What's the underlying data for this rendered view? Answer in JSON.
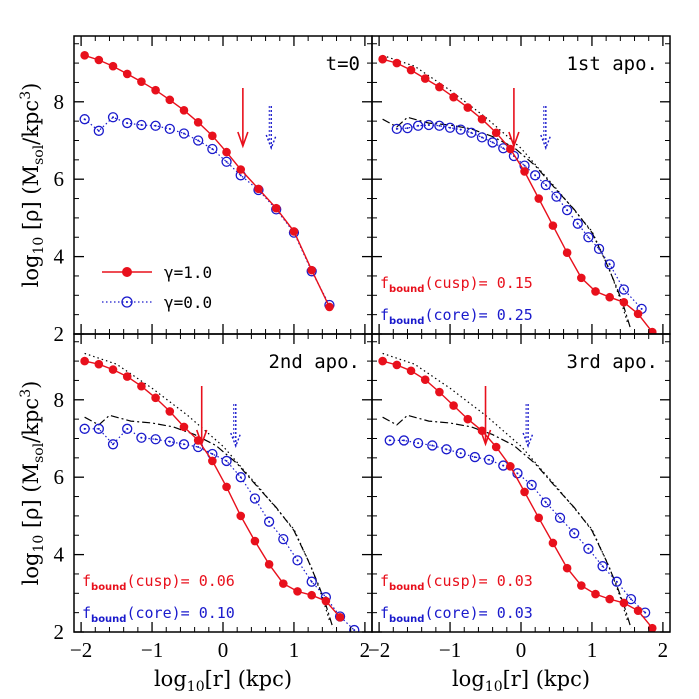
{
  "chart_data": {
    "type": "line",
    "layout": "2x2 panels sharing axes",
    "xlabel": "log10[r] (kpc)",
    "ylabel": "log10 [ρ] (Msol/kpc3)",
    "xlabel_parts": {
      "main": "log",
      "sub": "10",
      "rest": "[r]  (kpc)"
    },
    "ylabel_parts": {
      "main": "log",
      "sub": "10",
      "rest": " [ρ]  (M",
      "sub2": "sol",
      "rest2": "/kpc",
      "sup": "3",
      "end": ")"
    },
    "xlim": [
      -2.1,
      2.1
    ],
    "ylim": [
      2.0,
      9.7
    ],
    "x_ticks": [
      -2,
      -1,
      0,
      1,
      2
    ],
    "x_tick_labels": [
      "−2",
      "−1",
      "0",
      "1",
      "2"
    ],
    "y_ticks": [
      2,
      4,
      6,
      8
    ],
    "y_tick_labels": [
      "2",
      "4",
      "6",
      "8"
    ],
    "legend": {
      "location": "lower-left of t=0 panel",
      "entries": [
        {
          "name": "γ=1.0",
          "style": "solid red line with filled circles"
        },
        {
          "name": "γ=0.0",
          "style": "dotted blue line with open circles"
        }
      ]
    },
    "colors": {
      "cusp": "#e8101c",
      "core": "#1a1acc",
      "initial_cusp": "#000000",
      "initial_core": "#000000"
    },
    "panels": [
      {
        "title": "t=0",
        "cusp_arrow_x": 0.28,
        "core_arrow_x": 0.68,
        "series": [
          {
            "name": "γ=1.0",
            "x": [
              -1.95,
              -1.75,
              -1.55,
              -1.35,
              -1.15,
              -0.95,
              -0.75,
              -0.55,
              -0.35,
              -0.15,
              0.05,
              0.25,
              0.5,
              0.75,
              1.0,
              1.25,
              1.5
            ],
            "y": [
              9.2,
              9.08,
              8.92,
              8.72,
              8.52,
              8.3,
              8.05,
              7.78,
              7.47,
              7.12,
              6.7,
              6.25,
              5.75,
              5.25,
              4.65,
              3.65,
              2.7
            ]
          },
          {
            "name": "γ=0.0",
            "x": [
              -1.95,
              -1.75,
              -1.55,
              -1.35,
              -1.15,
              -0.95,
              -0.75,
              -0.55,
              -0.35,
              -0.15,
              0.05,
              0.25,
              0.5,
              0.75,
              1.0,
              1.25,
              1.5
            ],
            "y": [
              7.55,
              7.25,
              7.6,
              7.45,
              7.4,
              7.38,
              7.3,
              7.18,
              7.0,
              6.78,
              6.45,
              6.1,
              5.72,
              5.22,
              4.62,
              3.62,
              2.75
            ]
          }
        ],
        "initial_cusp": null,
        "initial_core": null
      },
      {
        "title": "1st apo.",
        "cusp_arrow_x": -0.1,
        "core_arrow_x": 0.35,
        "fbound_cusp": "0.15",
        "fbound_core": "0.25",
        "series": [
          {
            "name": "γ=1.0",
            "x": [
              -1.95,
              -1.75,
              -1.55,
              -1.35,
              -1.15,
              -0.95,
              -0.75,
              -0.55,
              -0.35,
              -0.15,
              0.05,
              0.25,
              0.45,
              0.65,
              0.85,
              1.05,
              1.25,
              1.45,
              1.65,
              1.85
            ],
            "y": [
              9.1,
              9.0,
              8.82,
              8.6,
              8.38,
              8.12,
              7.85,
              7.55,
              7.2,
              6.78,
              6.2,
              5.5,
              4.8,
              4.1,
              3.45,
              3.1,
              2.95,
              2.82,
              2.52,
              2.05
            ]
          },
          {
            "name": "γ=0.0",
            "x": [
              -1.75,
              -1.6,
              -1.45,
              -1.3,
              -1.15,
              -1.0,
              -0.85,
              -0.7,
              -0.55,
              -0.4,
              -0.25,
              -0.1,
              0.05,
              0.2,
              0.35,
              0.5,
              0.65,
              0.8,
              0.95,
              1.1,
              1.25,
              1.45,
              1.7
            ],
            "y": [
              7.3,
              7.32,
              7.38,
              7.4,
              7.38,
              7.33,
              7.28,
              7.2,
              7.08,
              6.95,
              6.8,
              6.6,
              6.35,
              6.1,
              5.85,
              5.55,
              5.2,
              4.85,
              4.5,
              4.2,
              3.8,
              3.15,
              2.65
            ]
          }
        ],
        "initial_cusp": {
          "x": [
            -1.95,
            -1.5,
            -1.0,
            -0.5,
            0.0,
            0.5,
            1.0,
            1.25,
            1.4,
            1.5
          ],
          "y": [
            9.2,
            8.92,
            8.3,
            7.6,
            6.8,
            5.75,
            4.65,
            3.65,
            2.9,
            2.3
          ]
        },
        "initial_core": {
          "x": [
            -1.95,
            -1.75,
            -1.6,
            -1.3,
            -1.0,
            -0.7,
            -0.4,
            -0.1,
            0.2,
            0.5,
            0.75,
            1.0,
            1.2,
            1.35,
            1.45,
            1.55
          ],
          "y": [
            7.55,
            7.35,
            7.6,
            7.45,
            7.4,
            7.3,
            7.1,
            6.82,
            6.35,
            5.72,
            5.22,
            4.62,
            3.85,
            3.2,
            2.7,
            2.1
          ]
        }
      },
      {
        "title": "2nd apo.",
        "cusp_arrow_x": -0.3,
        "core_arrow_x": 0.18,
        "fbound_cusp": "0.06",
        "fbound_core": "0.10",
        "series": [
          {
            "name": "γ=1.0",
            "x": [
              -1.95,
              -1.75,
              -1.55,
              -1.35,
              -1.15,
              -0.95,
              -0.75,
              -0.55,
              -0.35,
              -0.15,
              0.05,
              0.25,
              0.45,
              0.65,
              0.85,
              1.05,
              1.25,
              1.45,
              1.65
            ],
            "y": [
              9.0,
              8.92,
              8.78,
              8.6,
              8.35,
              8.05,
              7.7,
              7.3,
              6.95,
              6.42,
              5.75,
              5.0,
              4.35,
              3.75,
              3.25,
              3.05,
              2.95,
              2.8,
              2.38
            ]
          },
          {
            "name": "γ=0.0",
            "x": [
              -1.95,
              -1.75,
              -1.55,
              -1.35,
              -1.15,
              -0.95,
              -0.75,
              -0.55,
              -0.35,
              -0.15,
              0.05,
              0.25,
              0.45,
              0.65,
              0.85,
              1.05,
              1.25,
              1.45,
              1.65,
              1.85
            ],
            "y": [
              7.25,
              7.25,
              6.85,
              7.25,
              7.02,
              6.98,
              6.92,
              6.85,
              6.78,
              6.6,
              6.42,
              6.0,
              5.45,
              4.85,
              4.4,
              3.85,
              3.3,
              2.9,
              2.4,
              2.05
            ]
          }
        ],
        "initial_cusp": {
          "x": [
            -1.95,
            -1.5,
            -1.0,
            -0.5,
            0.0,
            0.5,
            1.0,
            1.25,
            1.4,
            1.5
          ],
          "y": [
            9.2,
            8.92,
            8.3,
            7.6,
            6.8,
            5.75,
            4.65,
            3.65,
            2.9,
            2.3
          ]
        },
        "initial_core": {
          "x": [
            -1.95,
            -1.75,
            -1.6,
            -1.3,
            -1.0,
            -0.7,
            -0.4,
            -0.1,
            0.2,
            0.5,
            0.75,
            1.0,
            1.2,
            1.35,
            1.45,
            1.55
          ],
          "y": [
            7.55,
            7.35,
            7.6,
            7.45,
            7.4,
            7.3,
            7.1,
            6.82,
            6.35,
            5.72,
            5.22,
            4.62,
            3.85,
            3.2,
            2.7,
            2.1
          ]
        }
      },
      {
        "title": "3rd apo.",
        "cusp_arrow_x": -0.5,
        "core_arrow_x": 0.1,
        "fbound_cusp": "0.03",
        "fbound_core": "0.03",
        "series": [
          {
            "name": "γ=1.0",
            "x": [
              -1.95,
              -1.75,
              -1.55,
              -1.35,
              -1.15,
              -0.95,
              -0.75,
              -0.55,
              -0.35,
              -0.15,
              0.05,
              0.25,
              0.45,
              0.65,
              0.85,
              1.05,
              1.25,
              1.45,
              1.65,
              1.85
            ],
            "y": [
              9.0,
              8.9,
              8.75,
              8.52,
              8.2,
              7.85,
              7.5,
              7.2,
              6.78,
              6.28,
              5.62,
              4.95,
              4.3,
              3.65,
              3.2,
              2.98,
              2.85,
              2.75,
              2.55,
              2.1
            ]
          },
          {
            "name": "γ=0.0",
            "x": [
              -1.85,
              -1.65,
              -1.45,
              -1.25,
              -1.05,
              -0.85,
              -0.65,
              -0.45,
              -0.25,
              -0.05,
              0.15,
              0.35,
              0.55,
              0.75,
              0.95,
              1.15,
              1.35,
              1.55,
              1.75
            ],
            "y": [
              6.95,
              6.95,
              6.88,
              6.82,
              6.72,
              6.62,
              6.52,
              6.45,
              6.3,
              6.1,
              5.8,
              5.35,
              4.95,
              4.55,
              4.15,
              3.7,
              3.3,
              2.85,
              2.5
            ]
          }
        ],
        "initial_cusp": {
          "x": [
            -1.95,
            -1.5,
            -1.0,
            -0.5,
            0.0,
            0.5,
            1.0,
            1.25,
            1.4,
            1.5
          ],
          "y": [
            9.2,
            8.92,
            8.3,
            7.6,
            6.8,
            5.75,
            4.65,
            3.65,
            2.9,
            2.3
          ]
        },
        "initial_core": {
          "x": [
            -1.95,
            -1.75,
            -1.6,
            -1.3,
            -1.0,
            -0.7,
            -0.4,
            -0.1,
            0.2,
            0.5,
            0.75,
            1.0,
            1.2,
            1.35,
            1.45,
            1.55
          ],
          "y": [
            7.55,
            7.35,
            7.6,
            7.45,
            7.4,
            7.3,
            7.1,
            6.82,
            6.35,
            5.72,
            5.22,
            4.62,
            3.85,
            3.2,
            2.7,
            2.1
          ]
        }
      }
    ],
    "annotation_labels": {
      "fbound_main": "f",
      "fbound_sub": "bound",
      "cusp_suffix": "(cusp)= ",
      "core_suffix": "(core)= "
    }
  }
}
